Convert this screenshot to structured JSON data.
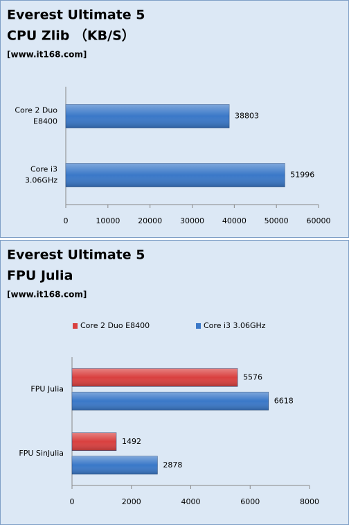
{
  "chart_data": [
    {
      "type": "hbar",
      "title": "Everest Ultimate 5",
      "subtitle": "CPU Zlib （KB/S）",
      "source": "[www.it168.com]",
      "categories": [
        "Core 2 Duo\nE8400",
        "Core i3\n3.06GHz"
      ],
      "series": [
        {
          "color": "#3a78c8",
          "values": [
            38803,
            51996
          ]
        }
      ],
      "xlim": [
        0,
        60000
      ],
      "xticks": [
        0,
        10000,
        20000,
        30000,
        40000,
        50000,
        60000
      ]
    },
    {
      "type": "hbar",
      "title": "Everest Ultimate 5",
      "subtitle": "FPU Julia",
      "source": "[www.it168.com]",
      "categories": [
        "FPU Julia",
        "FPU SinJulia"
      ],
      "series": [
        {
          "name": "Core 2 Duo E8400",
          "color": "#d9403f",
          "values": [
            5576,
            1492
          ]
        },
        {
          "name": "Core i3 3.06GHz",
          "color": "#3a78c8",
          "values": [
            6618,
            2878
          ]
        }
      ],
      "xlim": [
        0,
        8000
      ],
      "xticks": [
        0,
        2000,
        4000,
        6000,
        8000
      ],
      "legend": "top"
    }
  ]
}
